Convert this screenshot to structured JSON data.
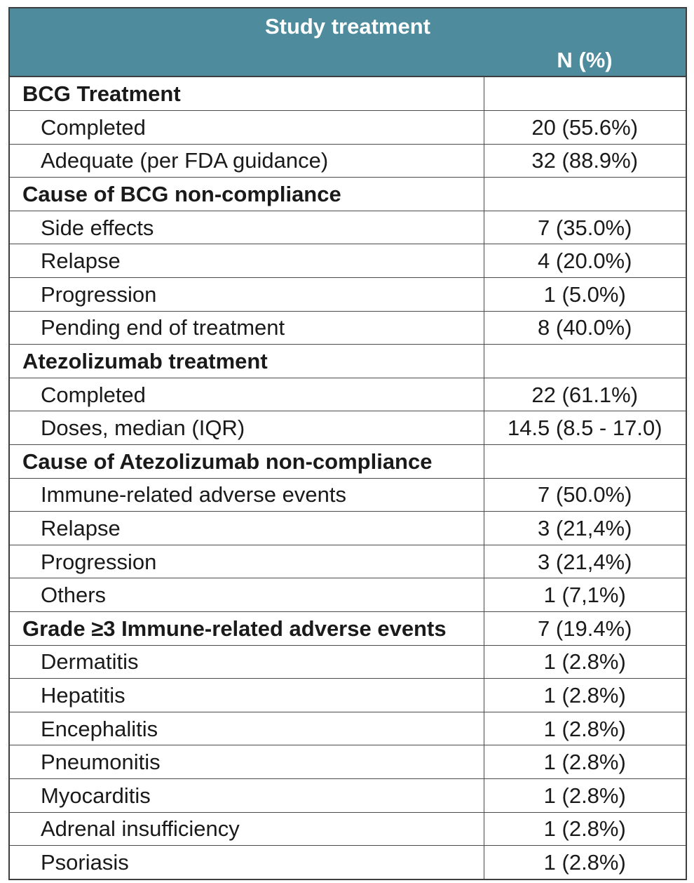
{
  "header": {
    "title": "Study treatment",
    "col_label": "N (%)"
  },
  "rows": [
    {
      "label": "BCG Treatment",
      "value": "",
      "section": true
    },
    {
      "label": "Completed",
      "value": "20 (55.6%)",
      "section": false
    },
    {
      "label": "Adequate (per FDA guidance)",
      "value": "32 (88.9%)",
      "section": false
    },
    {
      "label": "Cause of BCG non-compliance",
      "value": "",
      "section": true
    },
    {
      "label": "Side effects",
      "value": "7 (35.0%)",
      "section": false
    },
    {
      "label": "Relapse",
      "value": "4 (20.0%)",
      "section": false
    },
    {
      "label": "Progression",
      "value": "1 (5.0%)",
      "section": false
    },
    {
      "label": "Pending end of treatment",
      "value": "8 (40.0%)",
      "section": false
    },
    {
      "label": "Atezolizumab treatment",
      "value": "",
      "section": true
    },
    {
      "label": "Completed",
      "value": "22 (61.1%)",
      "section": false
    },
    {
      "label": "Doses, median (IQR)",
      "value": "14.5 (8.5 - 17.0)",
      "section": false
    },
    {
      "label": "Cause of Atezolizumab non-compliance",
      "value": "",
      "section": true
    },
    {
      "label": "Immune-related adverse events",
      "value": "7 (50.0%)",
      "section": false
    },
    {
      "label": "Relapse",
      "value": "3 (21,4%)",
      "section": false
    },
    {
      "label": "Progression",
      "value": "3 (21,4%)",
      "section": false
    },
    {
      "label": "Others",
      "value": "1 (7,1%)",
      "section": false
    },
    {
      "label": "Grade ≥3 Immune-related adverse events",
      "value": "7 (19.4%)",
      "section": true
    },
    {
      "label": "Dermatitis",
      "value": "1 (2.8%)",
      "section": false
    },
    {
      "label": "Hepatitis",
      "value": "1 (2.8%)",
      "section": false
    },
    {
      "label": "Encephalitis",
      "value": "1 (2.8%)",
      "section": false
    },
    {
      "label": "Pneumonitis",
      "value": "1 (2.8%)",
      "section": false
    },
    {
      "label": "Myocarditis",
      "value": "1 (2.8%)",
      "section": false
    },
    {
      "label": "Adrenal insufficiency",
      "value": "1 (2.8%)",
      "section": false
    },
    {
      "label": "Psoriasis",
      "value": "1 (2.8%)",
      "section": false
    }
  ],
  "colors": {
    "header_bg": "#4e8b9c",
    "header_text": "#ffffff",
    "border": "#3f3f3f"
  }
}
